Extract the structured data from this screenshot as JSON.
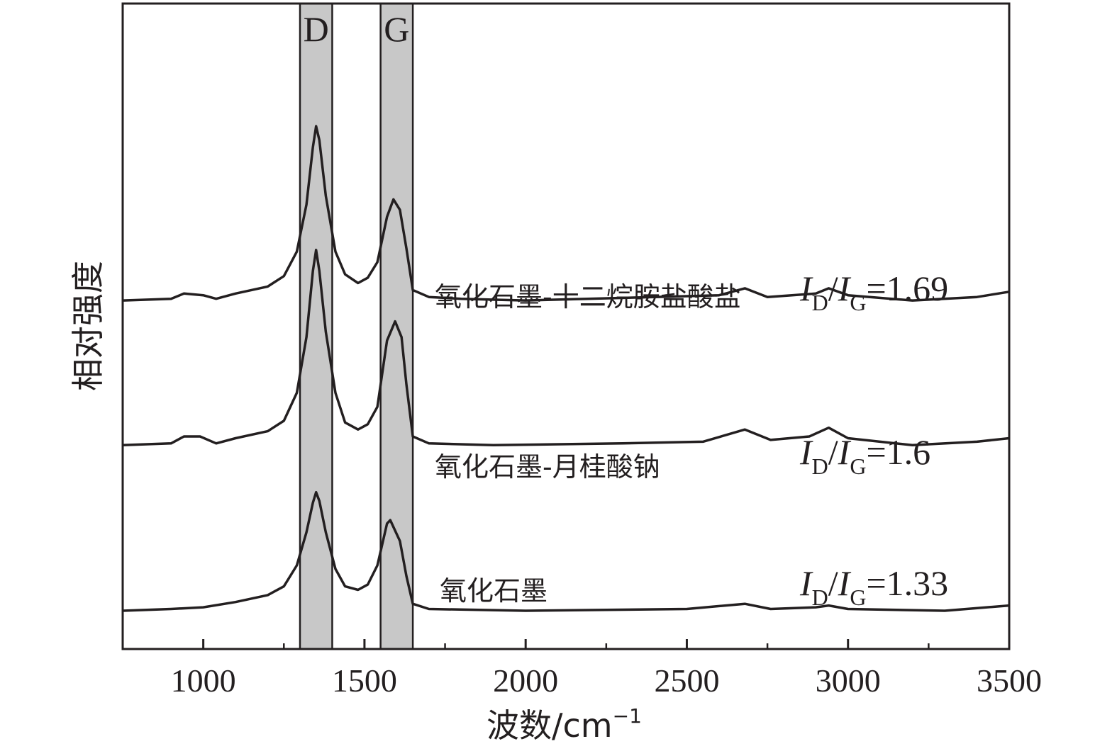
{
  "chart_data": {
    "type": "line",
    "xlabel": "波数/cm",
    "xlabel_sup": "−1",
    "ylabel": "相对强度",
    "xlim": [
      750,
      3500
    ],
    "xticks": [
      1000,
      1500,
      2000,
      2500,
      3000,
      3500
    ],
    "yticks_shown": false,
    "grid": false,
    "bands": [
      {
        "label": "D",
        "range": [
          1300,
          1400
        ],
        "color": "#c8c8c8"
      },
      {
        "label": "G",
        "range": [
          1550,
          1650
        ],
        "color": "#c8c8c8"
      }
    ],
    "series": [
      {
        "name": "氧化石墨-十二烷胺盐酸盐",
        "ratio": "1.69",
        "baseline": 1.78,
        "points": [
          [
            750,
            0
          ],
          [
            900,
            0.01
          ],
          [
            940,
            0.04
          ],
          [
            1000,
            0.03
          ],
          [
            1040,
            0.01
          ],
          [
            1100,
            0.04
          ],
          [
            1200,
            0.08
          ],
          [
            1250,
            0.14
          ],
          [
            1290,
            0.28
          ],
          [
            1320,
            0.55
          ],
          [
            1340,
            0.88
          ],
          [
            1350,
            1.0
          ],
          [
            1360,
            0.92
          ],
          [
            1380,
            0.6
          ],
          [
            1410,
            0.28
          ],
          [
            1440,
            0.15
          ],
          [
            1480,
            0.1
          ],
          [
            1510,
            0.13
          ],
          [
            1540,
            0.22
          ],
          [
            1570,
            0.48
          ],
          [
            1590,
            0.58
          ],
          [
            1610,
            0.52
          ],
          [
            1630,
            0.3
          ],
          [
            1650,
            0.06
          ],
          [
            1700,
            0.02
          ],
          [
            1800,
            0.01
          ],
          [
            2000,
            0.0
          ],
          [
            2400,
            0.02
          ],
          [
            2600,
            0.03
          ],
          [
            2680,
            0.07
          ],
          [
            2750,
            0.02
          ],
          [
            2900,
            0.04
          ],
          [
            2940,
            0.07
          ],
          [
            3000,
            0.03
          ],
          [
            3200,
            0.0
          ],
          [
            3400,
            0.02
          ],
          [
            3500,
            0.05
          ]
        ]
      },
      {
        "name": "氧化石墨-月桂酸钠",
        "ratio": "1.6",
        "baseline": 0.95,
        "points": [
          [
            750,
            0
          ],
          [
            900,
            0.01
          ],
          [
            940,
            0.05
          ],
          [
            990,
            0.05
          ],
          [
            1040,
            0.01
          ],
          [
            1100,
            0.04
          ],
          [
            1200,
            0.08
          ],
          [
            1250,
            0.14
          ],
          [
            1290,
            0.3
          ],
          [
            1320,
            0.62
          ],
          [
            1340,
            1.0
          ],
          [
            1350,
            1.12
          ],
          [
            1360,
            1.0
          ],
          [
            1380,
            0.65
          ],
          [
            1410,
            0.3
          ],
          [
            1440,
            0.13
          ],
          [
            1480,
            0.09
          ],
          [
            1510,
            0.12
          ],
          [
            1540,
            0.22
          ],
          [
            1570,
            0.6
          ],
          [
            1595,
            0.71
          ],
          [
            1615,
            0.62
          ],
          [
            1630,
            0.35
          ],
          [
            1650,
            0.05
          ],
          [
            1700,
            0.01
          ],
          [
            1900,
            0.0
          ],
          [
            2300,
            0.01
          ],
          [
            2550,
            0.02
          ],
          [
            2680,
            0.09
          ],
          [
            2760,
            0.03
          ],
          [
            2880,
            0.05
          ],
          [
            2940,
            0.1
          ],
          [
            3000,
            0.04
          ],
          [
            3200,
            0.0
          ],
          [
            3400,
            0.02
          ],
          [
            3500,
            0.04
          ]
        ]
      },
      {
        "name": "氧化石墨",
        "ratio": "1.33",
        "baseline": 0.0,
        "points": [
          [
            750,
            0
          ],
          [
            900,
            0.01
          ],
          [
            1000,
            0.02
          ],
          [
            1100,
            0.05
          ],
          [
            1200,
            0.09
          ],
          [
            1250,
            0.14
          ],
          [
            1290,
            0.26
          ],
          [
            1320,
            0.45
          ],
          [
            1340,
            0.62
          ],
          [
            1350,
            0.68
          ],
          [
            1360,
            0.63
          ],
          [
            1380,
            0.45
          ],
          [
            1410,
            0.24
          ],
          [
            1440,
            0.14
          ],
          [
            1480,
            0.12
          ],
          [
            1510,
            0.15
          ],
          [
            1540,
            0.26
          ],
          [
            1570,
            0.5
          ],
          [
            1580,
            0.52
          ],
          [
            1610,
            0.4
          ],
          [
            1630,
            0.2
          ],
          [
            1650,
            0.04
          ],
          [
            1700,
            0.01
          ],
          [
            2000,
            0.0
          ],
          [
            2500,
            0.01
          ],
          [
            2680,
            0.04
          ],
          [
            2760,
            0.01
          ],
          [
            2900,
            0.02
          ],
          [
            2940,
            0.03
          ],
          [
            3000,
            0.01
          ],
          [
            3300,
            0.0
          ],
          [
            3500,
            0.03
          ]
        ]
      }
    ]
  }
}
